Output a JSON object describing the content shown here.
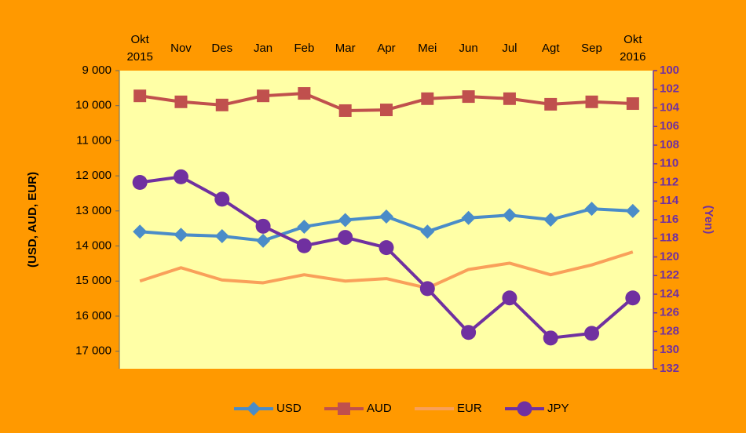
{
  "chart_data": {
    "type": "line",
    "categories": [
      "Okt 2015",
      "Nov",
      "Des",
      "Jan",
      "Feb",
      "Mar",
      "Apr",
      "Mei",
      "Jun",
      "Jul",
      "Agt",
      "Sep",
      "Okt 2016"
    ],
    "ylabel": "(USD, AUD, EUR)",
    "y2label": "(Yen)",
    "ylim": [
      9000,
      17500
    ],
    "inverted": true,
    "yticks": [
      {
        "value": 9000,
        "label": "9 000"
      },
      {
        "value": 10000,
        "label": "10 000"
      },
      {
        "value": 11000,
        "label": "11 000"
      },
      {
        "value": 12000,
        "label": "12 000"
      },
      {
        "value": 13000,
        "label": "13 000"
      },
      {
        "value": 14000,
        "label": "14 000"
      },
      {
        "value": 15000,
        "label": "15 000"
      },
      {
        "value": 16000,
        "label": "16 000"
      },
      {
        "value": 17000,
        "label": "17 000"
      }
    ],
    "y2lim": [
      100,
      132
    ],
    "y2ticks": [
      100,
      102,
      104,
      106,
      108,
      110,
      112,
      114,
      116,
      118,
      120,
      122,
      124,
      126,
      128,
      130,
      132
    ],
    "legend": "bottom",
    "series": [
      {
        "name": "USD",
        "color": "#4a8cc8",
        "marker": "diamond",
        "values": [
          13590,
          13680,
          13720,
          13850,
          13450,
          13260,
          13160,
          13590,
          13200,
          13120,
          13250,
          12940,
          13000
        ]
      },
      {
        "name": "AUD",
        "color": "#c0504d",
        "marker": "square",
        "values": [
          9720,
          9890,
          9980,
          9720,
          9650,
          10140,
          10120,
          9800,
          9740,
          9800,
          9960,
          9890,
          9940
        ]
      },
      {
        "name": "EUR",
        "color": "#f9a05a",
        "marker": "none",
        "values": [
          15000,
          14620,
          14970,
          15050,
          14820,
          15000,
          14930,
          15200,
          14670,
          14490,
          14820,
          14540,
          14170
        ]
      },
      {
        "name": "JPY",
        "color": "#7030a0",
        "marker": "circle",
        "axis": "y2",
        "values": [
          112.0,
          111.4,
          113.8,
          116.7,
          118.8,
          117.9,
          119.0,
          123.4,
          128.1,
          124.4,
          128.7,
          128.2,
          124.4
        ]
      }
    ]
  }
}
